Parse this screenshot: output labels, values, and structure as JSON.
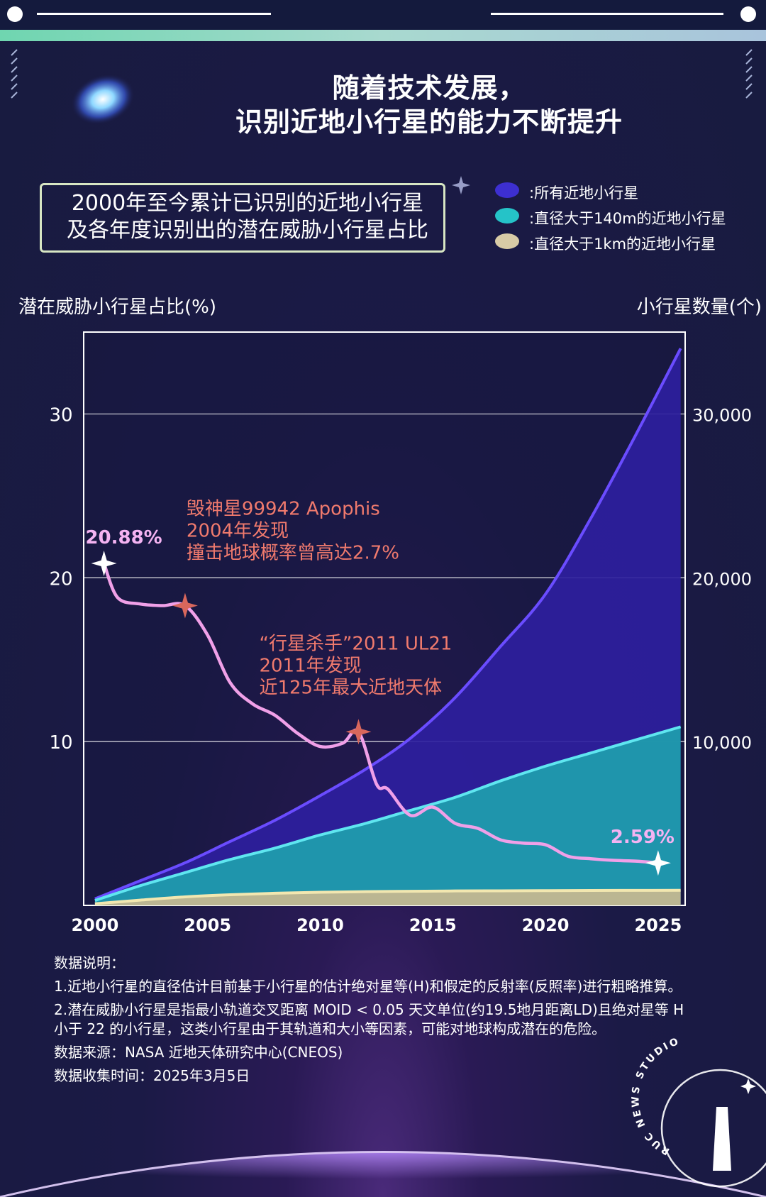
{
  "title_lines": [
    "随着技术发展，",
    "识别近地小行星的能力不断提升"
  ],
  "subtitle_lines": [
    "2000年至今累计已识别的近地小行星",
    "及各年度识别出的潜在威胁小行星占比"
  ],
  "legend": [
    {
      "label": ":所有近地小行星",
      "color": "#3d2fd1"
    },
    {
      "label": ":直径大于140m的近地小行星",
      "color": "#25c3c8"
    },
    {
      "label": ":直径大于1km的近地小行星",
      "color": "#d8cba6"
    }
  ],
  "left_axis_title": "潜在威胁小行星占比(%)",
  "right_axis_title": "小行星数量(个)",
  "chart_data": {
    "type": "area",
    "x": [
      2000,
      2002,
      2004,
      2006,
      2008,
      2010,
      2012,
      2014,
      2016,
      2018,
      2020,
      2022,
      2024,
      2026
    ],
    "x_ticks": [
      "2000",
      "2005",
      "2010",
      "2015",
      "2020",
      "2025"
    ],
    "x_tick_values": [
      2000,
      2005,
      2010,
      2015,
      2020,
      2025
    ],
    "xlim": [
      1999.5,
      2026.2
    ],
    "left_ylim": [
      0,
      35
    ],
    "left_ticks": [
      "10",
      "20",
      "30"
    ],
    "left_tick_values": [
      10,
      20,
      30
    ],
    "right_ylim": [
      0,
      35000
    ],
    "right_ticks": [
      "10,000",
      "20,000",
      "30,000"
    ],
    "right_tick_values": [
      10000,
      20000,
      30000
    ],
    "grid": true,
    "series": [
      {
        "name": "所有近地小行星",
        "axis": "right",
        "color": "#3d2fd1",
        "values": [
          400,
          1500,
          2600,
          3900,
          5200,
          6700,
          8300,
          10200,
          12700,
          15800,
          19000,
          23600,
          28700,
          34000
        ]
      },
      {
        "name": "直径大于140m的近地小行星",
        "axis": "right",
        "color": "#25c3c8",
        "values": [
          300,
          1200,
          2000,
          2800,
          3500,
          4300,
          5000,
          5800,
          6600,
          7600,
          8500,
          9300,
          10100,
          10900
        ]
      },
      {
        "name": "直径大于1km的近地小行星",
        "axis": "right",
        "color": "#d8cba6",
        "values": [
          100,
          320,
          520,
          650,
          740,
          800,
          840,
          860,
          880,
          890,
          900,
          910,
          915,
          920
        ]
      },
      {
        "name": "潜在威胁小行星占比",
        "axis": "left",
        "color": "#f0a0e8",
        "x": [
          2000.4,
          2001,
          2002,
          2003,
          2004,
          2005,
          2006,
          2007,
          2008,
          2009,
          2010,
          2011,
          2011.7,
          2012.5,
          2013,
          2014,
          2015,
          2016,
          2017,
          2018,
          2019,
          2020,
          2021,
          2022,
          2023,
          2024,
          2025
        ],
        "values": [
          20.88,
          18.8,
          18.4,
          18.3,
          18.3,
          16.5,
          13.6,
          12.3,
          11.6,
          10.5,
          9.7,
          9.9,
          10.6,
          7.4,
          7.1,
          5.5,
          6.0,
          5.0,
          4.7,
          4.0,
          3.8,
          3.7,
          3.0,
          2.85,
          2.75,
          2.7,
          2.59
        ]
      }
    ],
    "data_labels": [
      {
        "text": "20.88%",
        "x": 2000.4,
        "y": 20.88
      },
      {
        "text": "2.59%",
        "x": 2025,
        "y": 2.59
      }
    ],
    "annotations": [
      {
        "lines": [
          "毁神星99942 Apophis",
          "2004年发现",
          "撞击地球概率曾高达2.7%"
        ],
        "x": 2004,
        "y": 18.3
      },
      {
        "lines": [
          "“行星杀手”2011 UL21",
          "2011年发现",
          "近125年最大近地天体"
        ],
        "x": 2011.7,
        "y": 10.6
      }
    ]
  },
  "notes": {
    "heading": "数据说明：",
    "item1": "1.近地小行星的直径估计目前基于小行星的估计绝对星等(H)和假定的反射率(反照率)进行粗略推算。",
    "item2": "2.潜在威胁小行星是指最小轨道交叉距离 MOID < 0.05 天文单位(约19.5地月距离LD)且绝对星等 H 小于 22 的小行星，这类小行星由于其轨道和大小等因素，可能对地球构成潜在的危险。",
    "source": "数据来源：NASA 近地天体研究中心(CNEOS)",
    "date": "数据收集时间：2025年3月5日"
  },
  "watermark_text": "RUC NEWS STUDIO"
}
